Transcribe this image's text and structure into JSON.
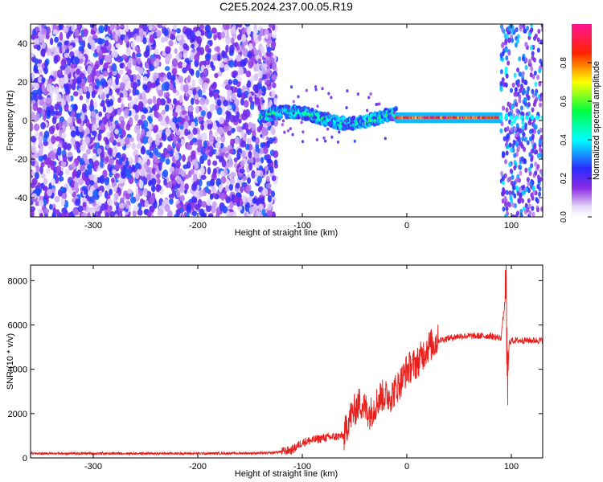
{
  "figure": {
    "title": "C2E5.2024.237.00.05.R19"
  },
  "chart_data": [
    {
      "type": "heatmap",
      "xlabel": "Height of straight line (km)",
      "ylabel": "Frequency (Hz)",
      "xlim": [
        -360,
        130
      ],
      "ylim": [
        -50,
        50
      ],
      "xticks": [
        -300,
        -200,
        -100,
        0,
        100
      ],
      "yticks": [
        -40,
        -20,
        0,
        20,
        40
      ],
      "colorbar": {
        "label": "Normalized spectral amplitude",
        "range": [
          0,
          1
        ],
        "ticks": [
          0.0,
          0.2,
          0.4,
          0.6,
          0.8
        ],
        "colormap": "rainbow",
        "colors": [
          "#ffffff",
          "#8a2be2",
          "#0000ff",
          "#00ffff",
          "#00ff00",
          "#ffff00",
          "#ff0000",
          "#ff1493"
        ]
      },
      "regions": [
        {
          "x": [
            -360,
            -125
          ],
          "description": "broadband noise",
          "amplitude": [
            0.05,
            0.3
          ]
        },
        {
          "x": [
            -140,
            -10
          ],
          "freq": [
            -3,
            8
          ],
          "description": "wavy signal band",
          "amplitude": [
            0.2,
            0.6
          ]
        },
        {
          "x": [
            -10,
            90
          ],
          "freq": [
            0,
            3
          ],
          "description": "strong narrow line",
          "amplitude": [
            0.7,
            1.0
          ]
        },
        {
          "x": [
            90,
            130
          ],
          "description": "noise burst",
          "amplitude": [
            0.1,
            0.4
          ]
        }
      ]
    },
    {
      "type": "line",
      "xlabel": "Height of straight line (km)",
      "ylabel": "SNR (10 * v/v)",
      "xlim": [
        -360,
        130
      ],
      "ylim": [
        0,
        8700
      ],
      "xticks": [
        -300,
        -200,
        -100,
        0,
        100
      ],
      "yticks": [
        0,
        2000,
        4000,
        6000,
        8000
      ],
      "series": [
        {
          "color": "#e8201e",
          "x": [
            -360,
            -300,
            -200,
            -130,
            -110,
            -100,
            -80,
            -60,
            -55,
            -45,
            -35,
            -25,
            -15,
            -5,
            0,
            10,
            20,
            30,
            40,
            50,
            60,
            70,
            80,
            90,
            95,
            96,
            98,
            100,
            110,
            120,
            130
          ],
          "y": [
            200,
            200,
            200,
            220,
            350,
            700,
            900,
            1000,
            1800,
            2500,
            2000,
            2800,
            2800,
            3500,
            4000,
            4300,
            5000,
            5300,
            5400,
            5500,
            5500,
            5500,
            5500,
            5400,
            7500,
            2800,
            5200,
            5300,
            5300,
            5300,
            5300
          ]
        }
      ]
    }
  ]
}
